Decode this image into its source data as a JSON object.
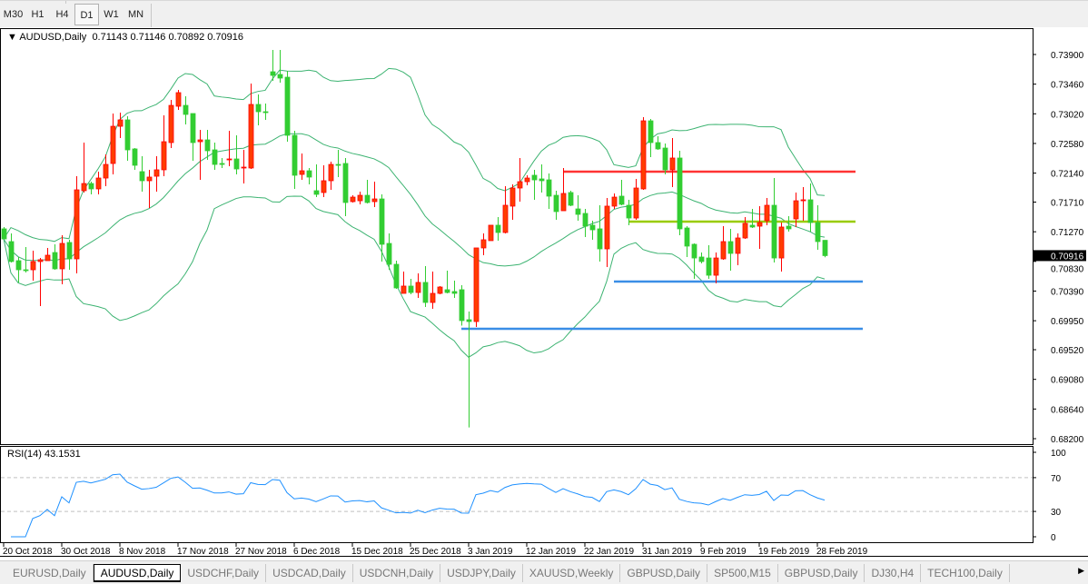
{
  "toolbar": {
    "timeframes": [
      "M30",
      "H1",
      "H4",
      "D1",
      "W1",
      "MN"
    ],
    "active_timeframe": "D1"
  },
  "chart": {
    "symbol_label": "AUDUSD,Daily",
    "ohlc_readout": "0.71143 0.71146 0.70892 0.70916",
    "current_price": "0.70916",
    "price_axis": [
      "0.73900",
      "0.73460",
      "0.73020",
      "0.72580",
      "0.72140",
      "0.71710",
      "0.71270",
      "0.70830",
      "0.70390",
      "0.69950",
      "0.69520",
      "0.69080",
      "0.68640",
      "0.68200"
    ],
    "date_axis": [
      "20 Oct 2018",
      "30 Oct 2018",
      "8 Nov 2018",
      "17 Nov 2018",
      "27 Nov 2018",
      "6 Dec 2018",
      "15 Dec 2018",
      "25 Dec 2018",
      "3 Jan 2019",
      "12 Jan 2019",
      "22 Jan 2019",
      "31 Jan 2019",
      "9 Feb 2019",
      "19 Feb 2019",
      "28 Feb 2019"
    ],
    "colors": {
      "bull": "#ff3c00",
      "bull_border": "#ff0000",
      "bear": "#32cd32",
      "bands": "#3cb371",
      "rsi": "#1e90ff",
      "axis_text": "#000000"
    },
    "indicators": {
      "bollinger": {
        "period": 20,
        "deviation": 2
      }
    },
    "horizontal_lines": [
      {
        "price": 0.72162,
        "color": "#ff3333"
      },
      {
        "price": 0.71421,
        "color": "#99cc00"
      },
      {
        "price": 0.70531,
        "color": "#3a8ee6"
      },
      {
        "price": 0.6983,
        "color": "#3a8ee6"
      }
    ]
  },
  "rsi": {
    "label": "RSI(14) 43.1531",
    "period": 14,
    "axis": [
      "100",
      "70",
      "30",
      "0"
    ],
    "levels": [
      70,
      30
    ]
  },
  "chart_data": {
    "type": "candlestick",
    "symbol": "AUDUSD",
    "ohlc": [
      [
        0.71313,
        0.7134,
        0.71164,
        0.71164
      ],
      [
        0.71124,
        0.71245,
        0.70814,
        0.70828
      ],
      [
        0.70841,
        0.70895,
        0.70518,
        0.70706
      ],
      [
        0.70706,
        0.71043,
        0.70666,
        0.707
      ],
      [
        0.70706,
        0.70989,
        0.70545,
        0.70828
      ],
      [
        0.70828,
        0.70881,
        0.70167,
        0.70855
      ],
      [
        0.70841,
        0.7103,
        0.70841,
        0.70922
      ],
      [
        0.70962,
        0.71084,
        0.70706,
        0.7072
      ],
      [
        0.7072,
        0.71218,
        0.70491,
        0.71097
      ],
      [
        0.71111,
        0.71151,
        0.70706,
        0.70868
      ],
      [
        0.70868,
        0.72094,
        0.70652,
        0.71892
      ],
      [
        0.71879,
        0.72593,
        0.71852,
        0.71986
      ],
      [
        0.71986,
        0.72013,
        0.71825,
        0.71906
      ],
      [
        0.71906,
        0.72162,
        0.71825,
        0.72067
      ],
      [
        0.72067,
        0.72418,
        0.71946,
        0.72269
      ],
      [
        0.72283,
        0.73024,
        0.72121,
        0.72835
      ],
      [
        0.72835,
        0.73038,
        0.7266,
        0.7293
      ],
      [
        0.7293,
        0.72984,
        0.72323,
        0.72485
      ],
      [
        0.72499,
        0.72512,
        0.72189,
        0.72256
      ],
      [
        0.72162,
        0.72391,
        0.71865,
        0.72027
      ],
      [
        0.72027,
        0.72189,
        0.71623,
        0.72081
      ],
      [
        0.72094,
        0.72391,
        0.71865,
        0.72189
      ],
      [
        0.72189,
        0.72997,
        0.72094,
        0.72606
      ],
      [
        0.72593,
        0.73226,
        0.72512,
        0.73145
      ],
      [
        0.73132,
        0.73374,
        0.73078,
        0.73334
      ],
      [
        0.73145,
        0.7328,
        0.72862,
        0.73011
      ],
      [
        0.73024,
        0.73024,
        0.72323,
        0.72593
      ],
      [
        0.72606,
        0.72782,
        0.7204,
        0.72633
      ],
      [
        0.72633,
        0.72782,
        0.72337,
        0.72472
      ],
      [
        0.72485,
        0.72593,
        0.72189,
        0.72269
      ],
      [
        0.72283,
        0.72364,
        0.72216,
        0.72269
      ],
      [
        0.72337,
        0.72768,
        0.72243,
        0.7235
      ],
      [
        0.7235,
        0.72701,
        0.72121,
        0.72202
      ],
      [
        0.72216,
        0.72485,
        0.71986,
        0.72229
      ],
      [
        0.72216,
        0.73469,
        0.72202,
        0.73159
      ],
      [
        0.73159,
        0.73307,
        0.72849,
        0.73051
      ],
      [
        0.73051,
        0.73172,
        0.7293,
        0.73038
      ],
      [
        0.73644,
        0.73967,
        0.73509,
        0.7359
      ],
      [
        0.73604,
        0.73967,
        0.73482,
        0.7355
      ],
      [
        0.73563,
        0.73657,
        0.72606,
        0.72701
      ],
      [
        0.72701,
        0.72768,
        0.71906,
        0.72108
      ],
      [
        0.72121,
        0.72431,
        0.7204,
        0.72175
      ],
      [
        0.72175,
        0.72216,
        0.71973,
        0.72081
      ],
      [
        0.71879,
        0.72269,
        0.71784,
        0.71825
      ],
      [
        0.71852,
        0.72256,
        0.71784,
        0.72027
      ],
      [
        0.72027,
        0.7231,
        0.71892,
        0.72269
      ],
      [
        0.72269,
        0.72485,
        0.72081,
        0.72256
      ],
      [
        0.72283,
        0.72364,
        0.71501,
        0.71704
      ],
      [
        0.71717,
        0.71811,
        0.71704,
        0.71784
      ],
      [
        0.7173,
        0.71865,
        0.71677,
        0.71811
      ],
      [
        0.71811,
        0.7204,
        0.7169,
        0.71704
      ],
      [
        0.71717,
        0.72013,
        0.71636,
        0.71757
      ],
      [
        0.71757,
        0.71825,
        0.70828,
        0.71084
      ],
      [
        0.71097,
        0.71245,
        0.70706,
        0.70787
      ],
      [
        0.70787,
        0.70841,
        0.70423,
        0.70437
      ],
      [
        0.70356,
        0.70679,
        0.70356,
        0.70464
      ],
      [
        0.70464,
        0.70572,
        0.70342,
        0.70369
      ],
      [
        0.70369,
        0.70652,
        0.70289,
        0.70518
      ],
      [
        0.70518,
        0.7076,
        0.70154,
        0.70221
      ],
      [
        0.70221,
        0.70679,
        0.70127,
        0.70356
      ],
      [
        0.70356,
        0.70464,
        0.70342,
        0.7045
      ],
      [
        0.7041,
        0.70693,
        0.70356,
        0.70369
      ],
      [
        0.70383,
        0.70545,
        0.70289,
        0.70356
      ],
      [
        0.7041,
        0.70477,
        0.69877,
        0.69952
      ],
      [
        0.69965,
        0.70086,
        0.68367,
        0.69938
      ],
      [
        0.69938,
        0.7103,
        0.69857,
        0.7103
      ],
      [
        0.7103,
        0.71245,
        0.70922,
        0.71151
      ],
      [
        0.71138,
        0.71367,
        0.71138,
        0.71367
      ],
      [
        0.71367,
        0.71488,
        0.71138,
        0.71259
      ],
      [
        0.71259,
        0.71946,
        0.71245,
        0.71663
      ],
      [
        0.7165,
        0.71973,
        0.71447,
        0.71919
      ],
      [
        0.71919,
        0.72364,
        0.71717,
        0.72013
      ],
      [
        0.72013,
        0.72108,
        0.7196,
        0.72067
      ],
      [
        0.72108,
        0.72189,
        0.71744,
        0.7204
      ],
      [
        0.72054,
        0.72269,
        0.71852,
        0.72027
      ],
      [
        0.7204,
        0.72135,
        0.71609,
        0.71798
      ],
      [
        0.71811,
        0.71879,
        0.71447,
        0.71569
      ],
      [
        0.71582,
        0.72216,
        0.71582,
        0.71838
      ],
      [
        0.71852,
        0.71879,
        0.7165,
        0.71663
      ],
      [
        0.71609,
        0.71811,
        0.71434,
        0.71528
      ],
      [
        0.71542,
        0.71609,
        0.71191,
        0.71353
      ],
      [
        0.71367,
        0.71434,
        0.71151,
        0.71299
      ],
      [
        0.71313,
        0.71663,
        0.70828,
        0.71016
      ],
      [
        0.71016,
        0.71771,
        0.70747,
        0.7165
      ],
      [
        0.7165,
        0.71838,
        0.71609,
        0.71784
      ],
      [
        0.71798,
        0.7204,
        0.71663,
        0.71677
      ],
      [
        0.71663,
        0.71744,
        0.71367,
        0.71474
      ],
      [
        0.71474,
        0.72054,
        0.71447,
        0.71919
      ],
      [
        0.71906,
        0.7297,
        0.71892,
        0.72916
      ],
      [
        0.72916,
        0.72943,
        0.72377,
        0.72593
      ],
      [
        0.72593,
        0.72687,
        0.72485,
        0.72499
      ],
      [
        0.72512,
        0.72579,
        0.72121,
        0.72189
      ],
      [
        0.72189,
        0.7266,
        0.71933,
        0.72364
      ],
      [
        0.72364,
        0.72472,
        0.71218,
        0.71313
      ],
      [
        0.71326,
        0.71353,
        0.70895,
        0.71057
      ],
      [
        0.71084,
        0.71097,
        0.70572,
        0.70881
      ],
      [
        0.70895,
        0.70962,
        0.70801,
        0.70828
      ],
      [
        0.70881,
        0.7107,
        0.70572,
        0.70625
      ],
      [
        0.70625,
        0.70962,
        0.70504,
        0.70881
      ],
      [
        0.70868,
        0.71353,
        0.70855,
        0.71124
      ],
      [
        0.71124,
        0.71313,
        0.70693,
        0.70949
      ],
      [
        0.70949,
        0.71245,
        0.70774,
        0.71178
      ],
      [
        0.71178,
        0.71488,
        0.71164,
        0.71394
      ],
      [
        0.71367,
        0.71609,
        0.71326,
        0.7134
      ],
      [
        0.71353,
        0.7165,
        0.71016,
        0.71407
      ],
      [
        0.71434,
        0.71771,
        0.71367,
        0.71663
      ],
      [
        0.71663,
        0.72067,
        0.70814,
        0.70881
      ],
      [
        0.70881,
        0.71407,
        0.70679,
        0.7134
      ],
      [
        0.71353,
        0.71501,
        0.71272,
        0.71313
      ],
      [
        0.71461,
        0.71852,
        0.7134,
        0.7173
      ],
      [
        0.7173,
        0.71933,
        0.71434,
        0.71744
      ],
      [
        0.71744,
        0.71986,
        0.71272,
        0.71407
      ],
      [
        0.71407,
        0.71663,
        0.71003,
        0.71124
      ],
      [
        0.71143,
        0.71146,
        0.70892,
        0.70916
      ]
    ],
    "ylim": [
      0.682,
      0.739
    ],
    "xlabel": "",
    "ylabel": ""
  },
  "tabs": [
    {
      "label": "EURUSD,Daily"
    },
    {
      "label": "AUDUSD,Daily",
      "active": true
    },
    {
      "label": "USDCHF,Daily"
    },
    {
      "label": "USDCAD,Daily"
    },
    {
      "label": "USDCNH,Daily"
    },
    {
      "label": "USDJPY,Daily"
    },
    {
      "label": "XAUUSD,Weekly"
    },
    {
      "label": "GBPUSD,Daily"
    },
    {
      "label": "SP500,M15"
    },
    {
      "label": "GBPUSD,Daily"
    },
    {
      "label": "DJ30,H4"
    },
    {
      "label": "TECH100,Daily"
    }
  ],
  "tabs_scroll_icon": "triangle-right"
}
